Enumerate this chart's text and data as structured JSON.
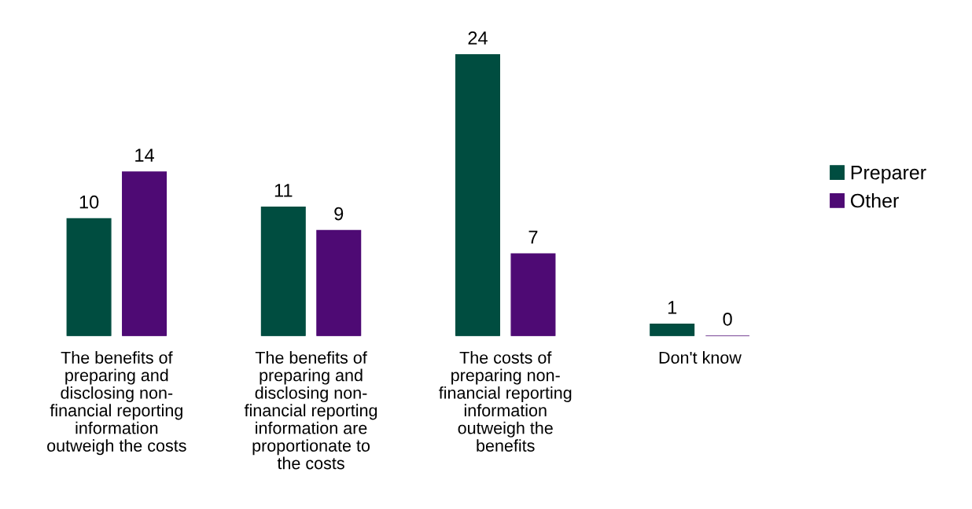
{
  "chart_data": {
    "type": "bar",
    "categories": [
      "The benefits of preparing and disclosing non-financial reporting information outweigh the costs",
      "The benefits of preparing and disclosing non-financial reporting information are proportionate to the costs",
      "The costs of preparing non-financial reporting information outweigh the benefits",
      "Don't know"
    ],
    "series": [
      {
        "name": "Preparer",
        "color": "#004d40",
        "values": [
          10,
          11,
          24,
          1
        ]
      },
      {
        "name": "Other",
        "color": "#4e0a74",
        "values": [
          14,
          9,
          7,
          0
        ]
      }
    ],
    "data_labels": true,
    "legend": "right",
    "grid": false
  }
}
